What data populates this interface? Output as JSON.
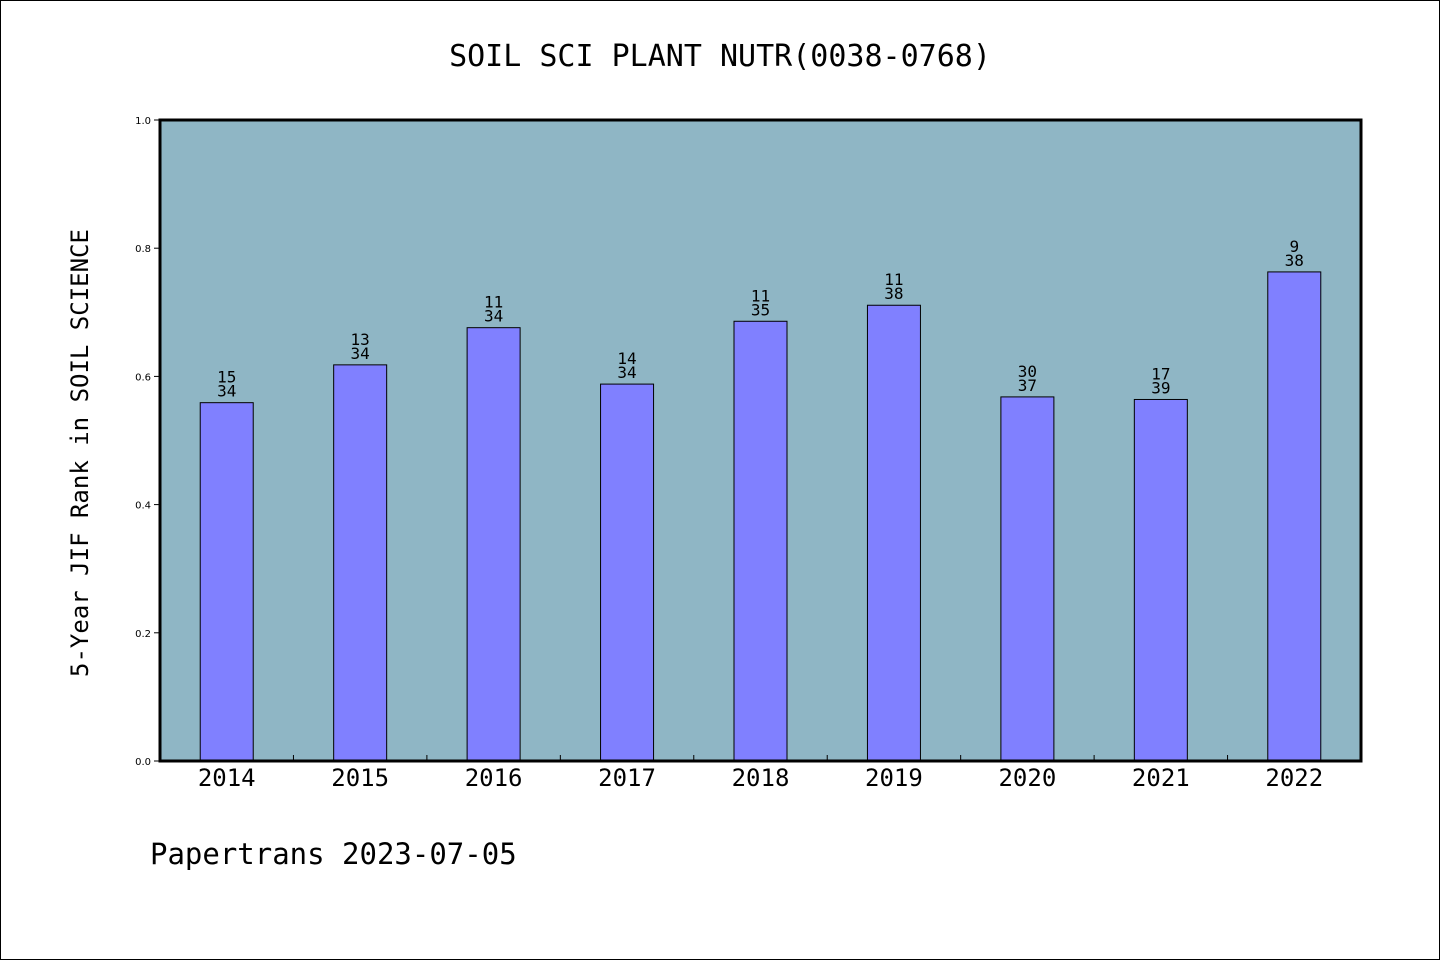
{
  "chart_data": {
    "type": "bar",
    "title": "SOIL SCI PLANT NUTR(0038-0768)",
    "ylabel": "5-Year JIF Rank in SOIL SCIENCE",
    "xlabel": "",
    "categories": [
      "2014",
      "2015",
      "2016",
      "2017",
      "2018",
      "2019",
      "2020",
      "2021",
      "2022"
    ],
    "values": [
      0.559,
      0.618,
      0.676,
      0.588,
      0.686,
      0.711,
      0.568,
      0.564,
      0.763
    ],
    "rank_labels": [
      {
        "rank": "15",
        "total": "34"
      },
      {
        "rank": "13",
        "total": "34"
      },
      {
        "rank": "11",
        "total": "34"
      },
      {
        "rank": "14",
        "total": "34"
      },
      {
        "rank": "11",
        "total": "35"
      },
      {
        "rank": "11",
        "total": "38"
      },
      {
        "rank": "30",
        "total": "37"
      },
      {
        "rank": "17",
        "total": "39"
      },
      {
        "rank": "9",
        "total": "38"
      }
    ],
    "ylim": [
      0.0,
      1.0
    ],
    "yticks": [
      "0.0",
      "0.2",
      "0.4",
      "0.6",
      "0.8",
      "1.0"
    ],
    "grid": false,
    "legend": "none",
    "colors": {
      "plot_background": "#8fb6c5",
      "bar_fill": "#8080ff",
      "bar_stroke": "#000000"
    }
  },
  "footer": "Papertrans 2023-07-05"
}
